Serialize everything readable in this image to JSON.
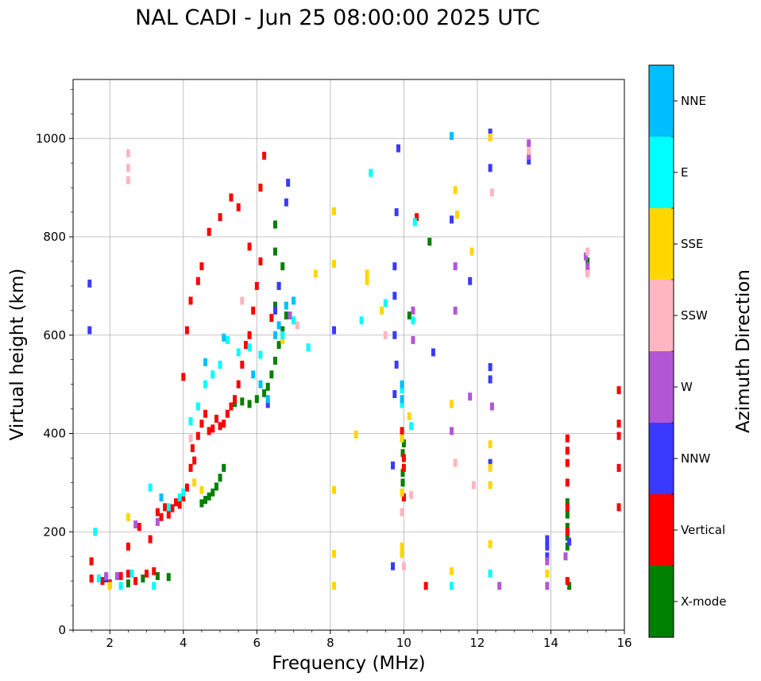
{
  "chart_data": {
    "type": "scatter",
    "title": "NAL CADI - Jun 25 08:00:00 2025 UTC",
    "xlabel": "Frequency (MHz)",
    "ylabel": "Virtual height (km)",
    "xlim": [
      1,
      16
    ],
    "ylim": [
      0,
      1120
    ],
    "xticks": [
      2,
      4,
      6,
      8,
      10,
      12,
      14,
      16
    ],
    "yticks": [
      0,
      200,
      400,
      600,
      800,
      1000
    ],
    "grid": true,
    "colorbar": {
      "label": "Azimuth Direction",
      "categories": [
        {
          "name": "X-mode",
          "color": "#008000"
        },
        {
          "name": "Vertical",
          "color": "#ff0000"
        },
        {
          "name": "NNW",
          "color": "#3a3aff"
        },
        {
          "name": "W",
          "color": "#b356d6"
        },
        {
          "name": "SSW",
          "color": "#ffb6c1"
        },
        {
          "name": "SSE",
          "color": "#ffd700"
        },
        {
          "name": "E",
          "color": "#00ffff"
        },
        {
          "name": "NNE",
          "color": "#00bfff"
        }
      ]
    },
    "series": [
      {
        "name": "X-mode",
        "points": [
          [
            2.5,
            95
          ],
          [
            2.9,
            105
          ],
          [
            3.3,
            110
          ],
          [
            3.6,
            108
          ],
          [
            4.5,
            258
          ],
          [
            4.6,
            265
          ],
          [
            4.7,
            272
          ],
          [
            4.8,
            280
          ],
          [
            4.9,
            292
          ],
          [
            5.0,
            310
          ],
          [
            5.1,
            330
          ],
          [
            5.4,
            462
          ],
          [
            5.6,
            465
          ],
          [
            5.8,
            460
          ],
          [
            6.0,
            470
          ],
          [
            6.2,
            482
          ],
          [
            6.3,
            495
          ],
          [
            6.4,
            520
          ],
          [
            6.5,
            548
          ],
          [
            6.6,
            580
          ],
          [
            6.7,
            610
          ],
          [
            6.8,
            640
          ],
          [
            6.5,
            660
          ],
          [
            6.6,
            700
          ],
          [
            6.7,
            740
          ],
          [
            6.5,
            770
          ],
          [
            6.5,
            825
          ],
          [
            9.97,
            300
          ],
          [
            9.97,
            320
          ],
          [
            9.97,
            360
          ],
          [
            10.0,
            270
          ],
          [
            10.0,
            380
          ],
          [
            10.7,
            790
          ],
          [
            10.15,
            640
          ],
          [
            14.5,
            90
          ],
          [
            14.45,
            170
          ],
          [
            14.45,
            190
          ],
          [
            14.45,
            210
          ],
          [
            14.45,
            235
          ],
          [
            14.45,
            260
          ],
          [
            15.0,
            750
          ]
        ]
      },
      {
        "name": "Vertical",
        "points": [
          [
            1.5,
            105
          ],
          [
            1.5,
            140
          ],
          [
            1.8,
            100
          ],
          [
            2.0,
            95
          ],
          [
            2.3,
            110
          ],
          [
            2.5,
            115
          ],
          [
            2.5,
            170
          ],
          [
            2.7,
            100
          ],
          [
            2.8,
            210
          ],
          [
            3.0,
            115
          ],
          [
            3.1,
            185
          ],
          [
            3.2,
            120
          ],
          [
            3.3,
            240
          ],
          [
            3.4,
            230
          ],
          [
            3.5,
            250
          ],
          [
            3.6,
            235
          ],
          [
            3.7,
            248
          ],
          [
            3.8,
            260
          ],
          [
            3.9,
            255
          ],
          [
            4.0,
            270
          ],
          [
            4.1,
            290
          ],
          [
            4.2,
            330
          ],
          [
            4.25,
            370
          ],
          [
            4.3,
            345
          ],
          [
            4.4,
            395
          ],
          [
            4.5,
            420
          ],
          [
            4.6,
            440
          ],
          [
            4.7,
            405
          ],
          [
            4.8,
            410
          ],
          [
            4.9,
            430
          ],
          [
            5.0,
            415
          ],
          [
            5.1,
            420
          ],
          [
            5.2,
            440
          ],
          [
            5.3,
            455
          ],
          [
            5.4,
            470
          ],
          [
            5.5,
            500
          ],
          [
            5.6,
            540
          ],
          [
            5.7,
            580
          ],
          [
            5.8,
            600
          ],
          [
            5.9,
            650
          ],
          [
            6.0,
            700
          ],
          [
            6.1,
            750
          ],
          [
            4.0,
            515
          ],
          [
            4.1,
            610
          ],
          [
            4.2,
            670
          ],
          [
            4.4,
            710
          ],
          [
            4.5,
            740
          ],
          [
            4.7,
            810
          ],
          [
            5.0,
            840
          ],
          [
            5.3,
            880
          ],
          [
            5.5,
            860
          ],
          [
            5.8,
            780
          ],
          [
            6.1,
            900
          ],
          [
            6.2,
            965
          ],
          [
            6.4,
            635
          ],
          [
            9.95,
            405
          ],
          [
            10.0,
            270
          ],
          [
            10.0,
            330
          ],
          [
            10.0,
            350
          ],
          [
            10.35,
            840
          ],
          [
            10.6,
            90
          ],
          [
            14.45,
            100
          ],
          [
            14.45,
            200
          ],
          [
            14.45,
            250
          ],
          [
            14.45,
            300
          ],
          [
            14.45,
            340
          ],
          [
            14.45,
            365
          ],
          [
            14.45,
            390
          ],
          [
            15.0,
            730
          ],
          [
            15.85,
            250
          ],
          [
            15.85,
            330
          ],
          [
            15.85,
            395
          ],
          [
            15.85,
            420
          ],
          [
            15.85,
            488
          ]
        ]
      },
      {
        "name": "NNW",
        "points": [
          [
            1.45,
            705
          ],
          [
            1.45,
            610
          ],
          [
            1.9,
            105
          ],
          [
            6.3,
            460
          ],
          [
            6.5,
            650
          ],
          [
            6.6,
            700
          ],
          [
            6.8,
            870
          ],
          [
            6.85,
            910
          ],
          [
            8.1,
            610
          ],
          [
            9.7,
            130
          ],
          [
            9.7,
            335
          ],
          [
            9.75,
            480
          ],
          [
            9.75,
            600
          ],
          [
            9.75,
            680
          ],
          [
            9.75,
            740
          ],
          [
            9.8,
            540
          ],
          [
            9.8,
            850
          ],
          [
            9.85,
            980
          ],
          [
            10.8,
            565
          ],
          [
            11.3,
            835
          ],
          [
            11.8,
            710
          ],
          [
            12.35,
            340
          ],
          [
            12.35,
            510
          ],
          [
            12.35,
            535
          ],
          [
            12.35,
            940
          ],
          [
            12.35,
            1012
          ],
          [
            13.4,
            955
          ],
          [
            13.9,
            150
          ],
          [
            13.9,
            170
          ],
          [
            13.9,
            185
          ],
          [
            14.5,
            180
          ]
        ]
      },
      {
        "name": "W",
        "points": [
          [
            1.9,
            110
          ],
          [
            2.2,
            110
          ],
          [
            2.7,
            215
          ],
          [
            3.3,
            220
          ],
          [
            6.9,
            640
          ],
          [
            10.25,
            590
          ],
          [
            10.25,
            650
          ],
          [
            11.4,
            650
          ],
          [
            11.4,
            740
          ],
          [
            11.8,
            475
          ],
          [
            11.3,
            405
          ],
          [
            12.4,
            455
          ],
          [
            12.6,
            90
          ],
          [
            13.4,
            965
          ],
          [
            13.4,
            990
          ],
          [
            13.9,
            90
          ],
          [
            13.9,
            140
          ],
          [
            14.4,
            150
          ],
          [
            14.95,
            760
          ],
          [
            15.0,
            740
          ]
        ]
      },
      {
        "name": "SSW",
        "points": [
          [
            2.5,
            915
          ],
          [
            2.5,
            940
          ],
          [
            2.5,
            970
          ],
          [
            4.2,
            390
          ],
          [
            5.6,
            670
          ],
          [
            7.1,
            620
          ],
          [
            9.5,
            600
          ],
          [
            9.95,
            240
          ],
          [
            10.0,
            130
          ],
          [
            10.2,
            275
          ],
          [
            11.4,
            340
          ],
          [
            11.9,
            295
          ],
          [
            12.4,
            890
          ],
          [
            13.4,
            975
          ],
          [
            15.0,
            770
          ],
          [
            15.0,
            725
          ]
        ]
      },
      {
        "name": "SSE",
        "points": [
          [
            2.0,
            90
          ],
          [
            2.5,
            230
          ],
          [
            4.3,
            300
          ],
          [
            4.5,
            285
          ],
          [
            6.7,
            590
          ],
          [
            7.6,
            725
          ],
          [
            8.1,
            90
          ],
          [
            8.1,
            155
          ],
          [
            8.1,
            285
          ],
          [
            8.1,
            745
          ],
          [
            8.1,
            852
          ],
          [
            8.7,
            398
          ],
          [
            9.0,
            710
          ],
          [
            9.0,
            725
          ],
          [
            9.4,
            650
          ],
          [
            9.95,
            155
          ],
          [
            9.95,
            170
          ],
          [
            9.95,
            280
          ],
          [
            9.95,
            390
          ],
          [
            10.15,
            435
          ],
          [
            11.3,
            120
          ],
          [
            11.3,
            460
          ],
          [
            11.4,
            895
          ],
          [
            11.45,
            845
          ],
          [
            11.85,
            770
          ],
          [
            12.35,
            175
          ],
          [
            12.35,
            295
          ],
          [
            12.35,
            330
          ],
          [
            12.35,
            378
          ],
          [
            12.35,
            1002
          ],
          [
            13.9,
            115
          ]
        ]
      },
      {
        "name": "E",
        "points": [
          [
            1.6,
            200
          ],
          [
            1.7,
            105
          ],
          [
            2.3,
            90
          ],
          [
            2.6,
            115
          ],
          [
            3.1,
            290
          ],
          [
            3.2,
            90
          ],
          [
            3.6,
            250
          ],
          [
            3.9,
            270
          ],
          [
            4.0,
            280
          ],
          [
            4.2,
            425
          ],
          [
            4.4,
            455
          ],
          [
            4.6,
            500
          ],
          [
            4.8,
            520
          ],
          [
            5.0,
            540
          ],
          [
            5.2,
            590
          ],
          [
            5.5,
            565
          ],
          [
            5.8,
            575
          ],
          [
            6.1,
            560
          ],
          [
            6.7,
            600
          ],
          [
            7.0,
            630
          ],
          [
            7.4,
            575
          ],
          [
            8.85,
            630
          ],
          [
            9.1,
            930
          ],
          [
            9.5,
            665
          ],
          [
            9.95,
            460
          ],
          [
            9.95,
            490
          ],
          [
            10.2,
            415
          ],
          [
            10.25,
            630
          ],
          [
            10.3,
            830
          ],
          [
            11.3,
            90
          ],
          [
            12.35,
            115
          ]
        ]
      },
      {
        "name": "NNE",
        "points": [
          [
            3.4,
            270
          ],
          [
            4.6,
            545
          ],
          [
            5.1,
            595
          ],
          [
            5.9,
            520
          ],
          [
            6.1,
            500
          ],
          [
            6.3,
            470
          ],
          [
            6.5,
            600
          ],
          [
            6.6,
            620
          ],
          [
            6.8,
            660
          ],
          [
            7.0,
            670
          ],
          [
            9.95,
            470
          ],
          [
            9.95,
            500
          ],
          [
            11.3,
            1005
          ]
        ]
      }
    ]
  }
}
